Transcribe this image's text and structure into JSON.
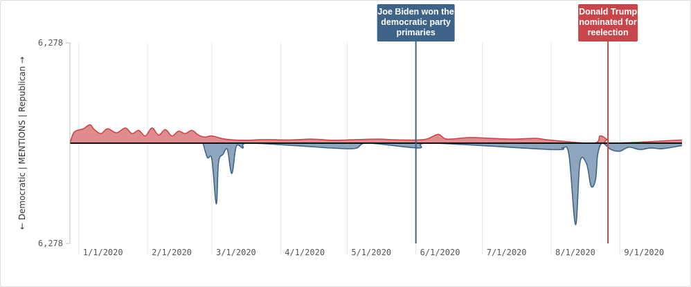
{
  "chart_data": {
    "type": "area",
    "title": "",
    "ylabel": "← Democratic | MENTIONS | Republican →",
    "y_tick_labels": [
      "6,278",
      "6,278"
    ],
    "ylim": [
      -6278,
      6278
    ],
    "x_tick_labels": [
      "1/1/2020",
      "2/1/2020",
      "3/1/2020",
      "4/1/2020",
      "5/1/2020",
      "6/1/2020",
      "7/1/2020",
      "8/1/2020",
      "9/1/2020"
    ],
    "x_range": [
      "2019-12-28",
      "2020-09-29"
    ],
    "grid": "vertical",
    "colors": {
      "republican": "#c8454a",
      "democratic": "#3e6389",
      "republican_fill": "#e08c8f",
      "democratic_fill": "#8ea6bd",
      "baseline": "#111111",
      "grid": "#e3e3e3"
    },
    "series": [
      {
        "name": "Republican",
        "color": "#c8454a",
        "points": [
          [
            "2019-12-28",
            0
          ],
          [
            "2019-12-30",
            700
          ],
          [
            "2020-01-03",
            900
          ],
          [
            "2020-01-06",
            1150
          ],
          [
            "2020-01-08",
            850
          ],
          [
            "2020-01-11",
            600
          ],
          [
            "2020-01-14",
            900
          ],
          [
            "2020-01-18",
            650
          ],
          [
            "2020-01-22",
            950
          ],
          [
            "2020-01-25",
            600
          ],
          [
            "2020-01-28",
            800
          ],
          [
            "2020-01-31",
            450
          ],
          [
            "2020-02-03",
            950
          ],
          [
            "2020-02-06",
            500
          ],
          [
            "2020-02-09",
            850
          ],
          [
            "2020-02-12",
            450
          ],
          [
            "2020-02-15",
            750
          ],
          [
            "2020-02-18",
            600
          ],
          [
            "2020-02-21",
            800
          ],
          [
            "2020-02-24",
            500
          ],
          [
            "2020-02-27",
            380
          ],
          [
            "2020-03-01",
            450
          ],
          [
            "2020-03-07",
            250
          ],
          [
            "2020-03-15",
            180
          ],
          [
            "2020-03-25",
            220
          ],
          [
            "2020-04-05",
            200
          ],
          [
            "2020-04-15",
            250
          ],
          [
            "2020-04-25",
            180
          ],
          [
            "2020-05-05",
            220
          ],
          [
            "2020-05-15",
            250
          ],
          [
            "2020-05-25",
            200
          ],
          [
            "2020-06-05",
            230
          ],
          [
            "2020-06-11",
            550
          ],
          [
            "2020-06-15",
            250
          ],
          [
            "2020-06-25",
            350
          ],
          [
            "2020-07-05",
            300
          ],
          [
            "2020-07-15",
            250
          ],
          [
            "2020-07-25",
            300
          ],
          [
            "2020-07-31",
            200
          ],
          [
            "2020-08-20",
            0
          ],
          [
            "2020-08-23",
            450
          ],
          [
            "2020-08-26",
            250
          ],
          [
            "2020-08-28",
            0
          ],
          [
            "2020-09-29",
            200
          ]
        ]
      },
      {
        "name": "Democratic",
        "color": "#3e6389",
        "points": [
          [
            "2020-02-26",
            0
          ],
          [
            "2020-02-28",
            -900
          ],
          [
            "2020-03-01",
            -1000
          ],
          [
            "2020-03-03",
            -3800
          ],
          [
            "2020-03-04",
            -1200
          ],
          [
            "2020-03-06",
            -700
          ],
          [
            "2020-03-08",
            -400
          ],
          [
            "2020-03-10",
            -1900
          ],
          [
            "2020-03-12",
            -200
          ],
          [
            "2020-03-15",
            -300
          ],
          [
            "2020-03-17",
            0
          ],
          [
            "2020-04-07",
            -150
          ],
          [
            "2020-05-03",
            -350
          ],
          [
            "2020-05-10",
            0
          ],
          [
            "2020-06-02",
            -300
          ],
          [
            "2020-06-08",
            0
          ],
          [
            "2020-08-01",
            -400
          ],
          [
            "2020-08-06",
            -300
          ],
          [
            "2020-08-09",
            -700
          ],
          [
            "2020-08-12",
            -5100
          ],
          [
            "2020-08-14",
            -1200
          ],
          [
            "2020-08-17",
            -1300
          ],
          [
            "2020-08-19",
            -2700
          ],
          [
            "2020-08-21",
            -2300
          ],
          [
            "2020-08-22",
            -700
          ],
          [
            "2020-08-24",
            0
          ],
          [
            "2020-08-28",
            -400
          ],
          [
            "2020-09-01",
            -500
          ],
          [
            "2020-09-05",
            -250
          ],
          [
            "2020-09-10",
            -400
          ],
          [
            "2020-09-15",
            -300
          ],
          [
            "2020-09-20",
            -350
          ],
          [
            "2020-09-29",
            -150
          ]
        ]
      }
    ],
    "annotations": [
      {
        "date": "2020-06-01",
        "party": "democratic",
        "lines": [
          "Joe Biden won the",
          "democratic party",
          "primaries"
        ]
      },
      {
        "date": "2020-08-26",
        "party": "republican",
        "lines": [
          "Donald Trump",
          "nominated for",
          "reelection"
        ]
      }
    ]
  }
}
